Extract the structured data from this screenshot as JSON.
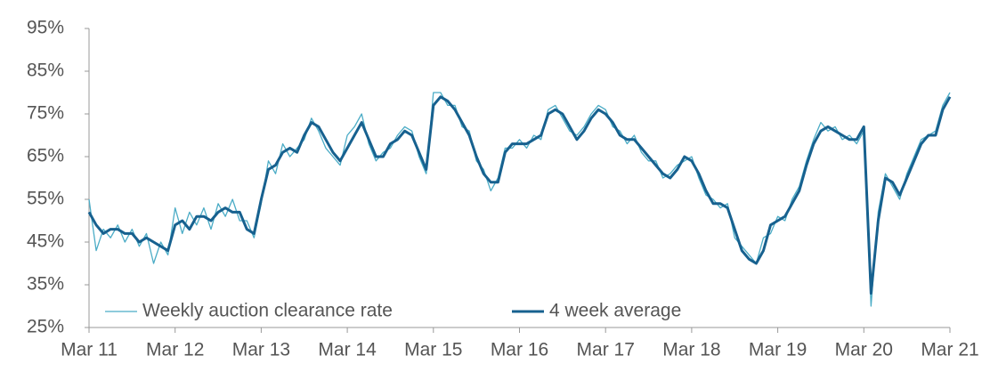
{
  "chart_data": {
    "type": "line",
    "categories": [
      "Mar 11",
      null,
      null,
      null,
      null,
      null,
      null,
      null,
      null,
      null,
      null,
      null,
      "Mar 12",
      null,
      null,
      null,
      null,
      null,
      null,
      null,
      null,
      null,
      null,
      null,
      "Mar 13",
      null,
      null,
      null,
      null,
      null,
      null,
      null,
      null,
      null,
      null,
      null,
      "Mar 14",
      null,
      null,
      null,
      null,
      null,
      null,
      null,
      null,
      null,
      null,
      null,
      "Mar 15",
      null,
      null,
      null,
      null,
      null,
      null,
      null,
      null,
      null,
      null,
      null,
      "Mar 16",
      null,
      null,
      null,
      null,
      null,
      null,
      null,
      null,
      null,
      null,
      null,
      "Mar 17",
      null,
      null,
      null,
      null,
      null,
      null,
      null,
      null,
      null,
      null,
      null,
      "Mar 18",
      null,
      null,
      null,
      null,
      null,
      null,
      null,
      null,
      null,
      null,
      null,
      "Mar 19",
      null,
      null,
      null,
      null,
      null,
      null,
      null,
      null,
      null,
      null,
      null,
      "Mar 20",
      null,
      null,
      null,
      null,
      null,
      null,
      null,
      null,
      null,
      null,
      null,
      "Mar 21"
    ],
    "series": [
      {
        "name": "Weekly auction clearance rate",
        "color": "#4bacc6",
        "width": 1.3,
        "values": [
          55,
          43,
          48,
          46,
          49,
          45,
          48,
          44,
          47,
          40,
          45,
          42,
          53,
          47,
          52,
          49,
          53,
          48,
          54,
          51,
          55,
          50,
          50,
          46,
          54,
          64,
          61,
          68,
          65,
          67,
          69,
          74,
          71,
          67,
          65,
          63,
          70,
          72,
          75,
          68,
          64,
          66,
          67,
          70,
          72,
          71,
          65,
          61,
          80,
          80,
          77,
          77,
          72,
          71,
          64,
          62,
          57,
          60,
          67,
          67,
          69,
          67,
          70,
          69,
          76,
          77,
          74,
          71,
          70,
          72,
          75,
          77,
          76,
          72,
          71,
          68,
          70,
          66,
          64,
          64,
          60,
          61,
          63,
          64,
          65,
          60,
          56,
          55,
          53,
          54,
          46,
          44,
          42,
          40,
          46,
          47,
          51,
          50,
          55,
          58,
          64,
          69,
          73,
          71,
          72,
          69,
          70,
          68,
          71,
          30,
          52,
          61,
          58,
          55,
          61,
          65,
          69,
          70,
          71,
          77,
          80
        ]
      },
      {
        "name": "4 week average",
        "color": "#17618f",
        "width": 3,
        "values": [
          52,
          49,
          47,
          48,
          48,
          47,
          47,
          45,
          46,
          45,
          44,
          43,
          49,
          50,
          48,
          51,
          51,
          50,
          52,
          53,
          52,
          52,
          48,
          47,
          55,
          62,
          63,
          66,
          67,
          66,
          70,
          73,
          72,
          69,
          66,
          64,
          67,
          70,
          73,
          69,
          65,
          65,
          68,
          69,
          71,
          70,
          66,
          62,
          77,
          79,
          78,
          76,
          73,
          70,
          65,
          61,
          59,
          59,
          66,
          68,
          68,
          68,
          69,
          70,
          75,
          76,
          75,
          72,
          69,
          71,
          74,
          76,
          75,
          73,
          70,
          69,
          69,
          67,
          65,
          63,
          61,
          60,
          62,
          65,
          64,
          61,
          57,
          54,
          54,
          53,
          48,
          43,
          41,
          40,
          43,
          49,
          50,
          51,
          54,
          57,
          63,
          68,
          71,
          72,
          71,
          70,
          69,
          69,
          72,
          33,
          50,
          60,
          59,
          56,
          60,
          64,
          68,
          70,
          70,
          76,
          79
        ]
      }
    ],
    "ylim": [
      25,
      95
    ],
    "yticks": [
      {
        "value": 25,
        "label": "25%"
      },
      {
        "value": 35,
        "label": "35%"
      },
      {
        "value": 45,
        "label": "45%"
      },
      {
        "value": 55,
        "label": "55%"
      },
      {
        "value": 65,
        "label": "65%"
      },
      {
        "value": 75,
        "label": "75%"
      },
      {
        "value": 85,
        "label": "85%"
      },
      {
        "value": 95,
        "label": "95%"
      }
    ],
    "grid": false,
    "legend": "lower left"
  }
}
